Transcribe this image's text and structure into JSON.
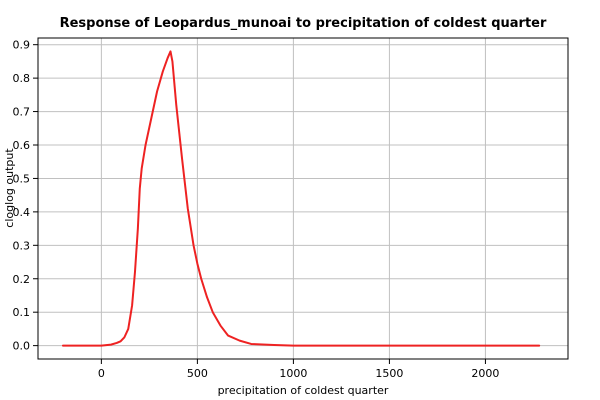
{
  "chart_data": {
    "type": "line",
    "title": "Response of Leopardus_munoai to precipitation of coldest quarter",
    "xlabel": "precipitation of coldest quarter",
    "ylabel": "cloglog output",
    "xlim": [
      -330,
      2430
    ],
    "ylim": [
      -0.04,
      0.92
    ],
    "x_ticks": [
      0,
      500,
      1000,
      1500,
      2000
    ],
    "y_ticks": [
      0.0,
      0.1,
      0.2,
      0.3,
      0.4,
      0.5,
      0.6,
      0.7,
      0.8,
      0.9
    ],
    "x_tick_labels": [
      "0",
      "500",
      "1000",
      "1500",
      "2000"
    ],
    "y_tick_labels": [
      "0.0",
      "0.1",
      "0.2",
      "0.3",
      "0.4",
      "0.5",
      "0.6",
      "0.7",
      "0.8",
      "0.9"
    ],
    "grid": true,
    "series": [
      {
        "color": "#ee2222",
        "x": [
          -200,
          -100,
          0,
          50,
          80,
          100,
          120,
          140,
          160,
          175,
          190,
          200,
          210,
          230,
          260,
          290,
          320,
          345,
          360,
          370,
          390,
          420,
          450,
          480,
          500,
          520,
          550,
          580,
          620,
          660,
          720,
          780,
          900,
          1000,
          1500,
          2000,
          2280
        ],
        "values": [
          0.0,
          0.0,
          0.0,
          0.003,
          0.008,
          0.013,
          0.025,
          0.05,
          0.12,
          0.22,
          0.35,
          0.47,
          0.53,
          0.6,
          0.68,
          0.76,
          0.82,
          0.86,
          0.88,
          0.85,
          0.72,
          0.56,
          0.41,
          0.3,
          0.245,
          0.2,
          0.145,
          0.1,
          0.06,
          0.03,
          0.015,
          0.005,
          0.002,
          0.0,
          0.0,
          0.0,
          0.0
        ]
      }
    ]
  }
}
